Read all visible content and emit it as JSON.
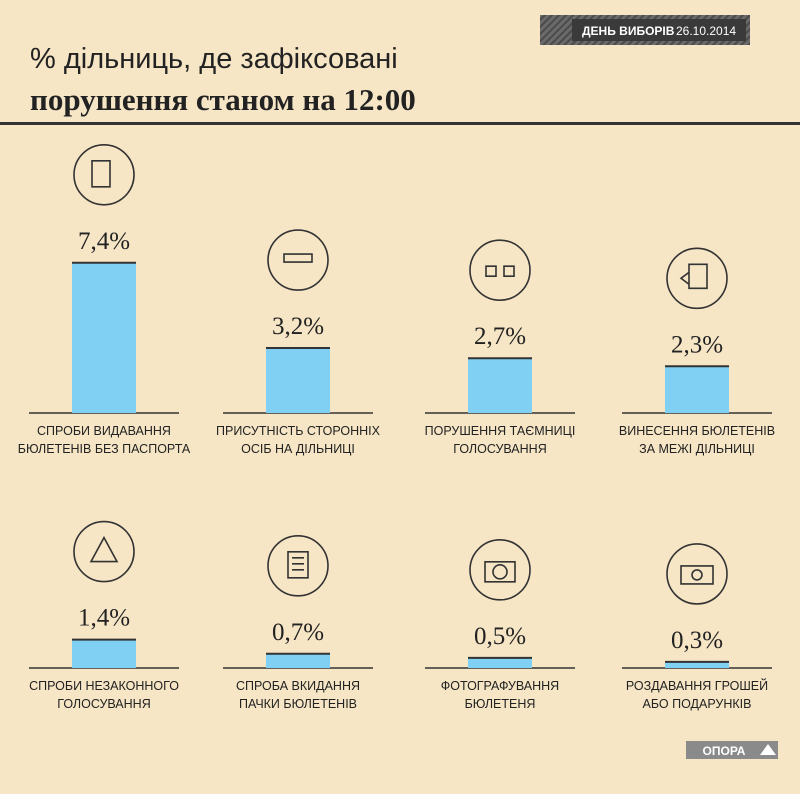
{
  "header": {
    "badge_bold": "ДЕНЬ ВИБОРІВ",
    "badge_date": "26.10.2014"
  },
  "logo": "ОПОРА",
  "chart_data": {
    "type": "bar",
    "title": "% дільниць, де зафіксовані",
    "subtitle": "порушення станом на 12:00",
    "categories": [
      [
        "СПРОБИ ВИДАВАННЯ",
        "БЮЛЕТЕНІВ БЕЗ ПАСПОРТА"
      ],
      [
        "ПРИСУТНІСТЬ СТОРОННІХ",
        "ОСІБ НА ДІЛЬНИЦІ"
      ],
      [
        "ПОРУШЕННЯ ТАЄМНИЦІ",
        "ГОЛОСУВАННЯ"
      ],
      [
        "ВИНЕСЕННЯ БЮЛЕТЕНІВ",
        "ЗА МЕЖІ ДІЛЬНИЦІ"
      ],
      [
        "СПРОБИ НЕЗАКОННОГО",
        "ГОЛОСУВАННЯ"
      ],
      [
        "СПРОБА ВКИДАННЯ",
        "ПАЧКИ БЮЛЕТЕНІВ"
      ],
      [
        "ФОТОГРАФУВАННЯ",
        "БЮЛЕТЕНЯ"
      ],
      [
        "РОЗДАВАННЯ ГРОШЕЙ",
        "АБО ПОДАРУНКІВ"
      ]
    ],
    "values": [
      7.4,
      3.2,
      2.7,
      2.3,
      1.4,
      0.7,
      0.5,
      0.3
    ],
    "value_labels": [
      "7,4%",
      "3,2%",
      "2,7%",
      "2,3%",
      "1,4%",
      "0,7%",
      "0,5%",
      "0,3%"
    ],
    "color": "#80d0f4"
  }
}
